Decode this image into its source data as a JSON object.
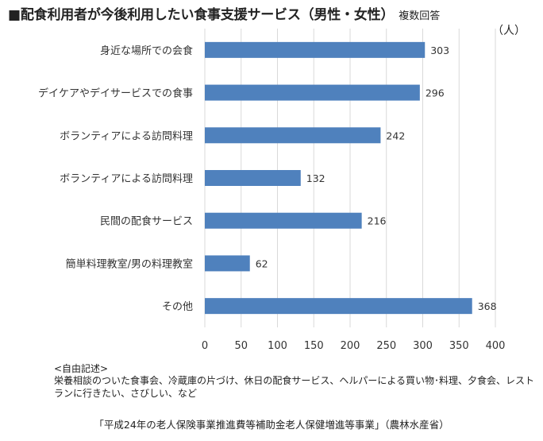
{
  "title": "■配食利用者が今後利用したい食事支援サービス（男性・女性）",
  "title_note": "複数回答",
  "unit": "（人）",
  "chart_data": {
    "type": "bar",
    "orientation": "horizontal",
    "categories": [
      "身近な場所での会食",
      "デイケアやデイサービスでの食事",
      "ボランティアによる訪問料理",
      "ボランティアによる訪問料理",
      "民間の配食サービス",
      "簡単料理教室/男の料理教室",
      "その他"
    ],
    "values": [
      303,
      296,
      242,
      132,
      216,
      62,
      368
    ],
    "xlim": [
      0,
      400
    ],
    "xticks": [
      0,
      50,
      100,
      150,
      200,
      250,
      300,
      350,
      400
    ],
    "grid": true,
    "data_labels": true,
    "bar_color": "#4f81bd",
    "grid_color": "#d9d9d9"
  },
  "free_text": {
    "heading": "<自由記述>",
    "body": "栄養相談のついた食事会、冷蔵庫の片づけ、休日の配食サービス、ヘルパーによる買い物･料理、夕食会、レストランに行きたい、さびしい、など"
  },
  "source": "「平成24年の老人保険事業推進費等補助金老人保健増進等事業」（農林水産省）"
}
